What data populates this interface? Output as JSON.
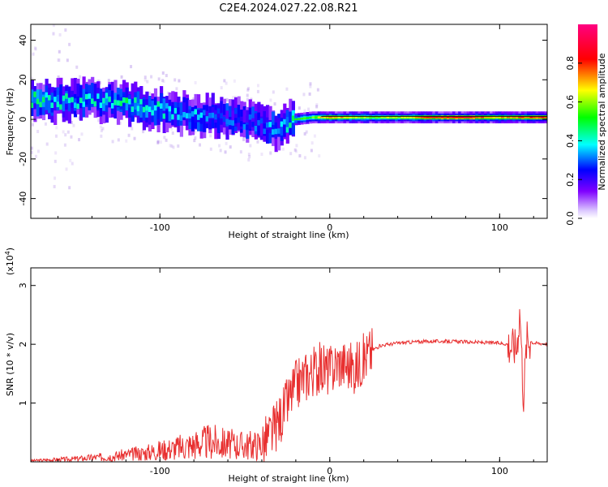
{
  "title": "C2E4.2024.027.22.08.R21",
  "chart_data": [
    {
      "type": "heatmap",
      "title": "C2E4.2024.027.22.08.R21",
      "xlabel": "Height of straight line (km)",
      "ylabel": "Frequency (Hz)",
      "xlim": [
        -176,
        128
      ],
      "ylim": [
        -50,
        48
      ],
      "x_ticks": [
        -100,
        0,
        100
      ],
      "y_ticks": [
        40,
        20,
        0,
        -20,
        -40
      ],
      "x_tick_labels": [
        "-100",
        "0",
        "100"
      ],
      "y_tick_labels": [
        "40",
        "20",
        "0",
        "-20",
        "-40"
      ],
      "colorbar": {
        "label": "Normalized spectral amplitude",
        "range": [
          0.0,
          1.0
        ],
        "ticks": [
          0.0,
          0.2,
          0.4,
          0.6,
          0.8
        ],
        "tick_labels": [
          "0.0",
          "0.2",
          "0.4",
          "0.6",
          "0.8"
        ],
        "colors": [
          "#ffffff",
          "#7f00ff",
          "#0000ff",
          "#00ffff",
          "#00ff00",
          "#ffff00",
          "#ff0000",
          "#ff0080"
        ]
      },
      "ridge": {
        "x": [
          -176,
          -160,
          -140,
          -120,
          -100,
          -80,
          -60,
          -40,
          -30,
          -20,
          -10,
          0,
          20,
          40,
          60,
          80,
          100,
          110,
          128
        ],
        "frequency": [
          10,
          9,
          10,
          8,
          5,
          2,
          1,
          -3,
          -5,
          0,
          1,
          1,
          1,
          1,
          1,
          1,
          1,
          1,
          1
        ],
        "amplitude": [
          0.45,
          0.4,
          0.4,
          0.45,
          0.4,
          0.35,
          0.3,
          0.3,
          0.35,
          0.5,
          0.55,
          0.75,
          0.6,
          0.62,
          0.8,
          0.85,
          0.7,
          0.75,
          0.8
        ]
      }
    },
    {
      "type": "line",
      "xlabel": "Height of straight line (km)",
      "ylabel": "SNR (10 * v/v)",
      "y_multiplier": "(x10",
      "y_multiplier_exp": "4",
      "y_multiplier_close": ")",
      "xlim": [
        -176,
        128
      ],
      "ylim": [
        0,
        3.3
      ],
      "x_ticks": [
        -100,
        0,
        100
      ],
      "y_ticks": [
        1,
        2,
        3
      ],
      "x_tick_labels": [
        "-100",
        "0",
        "100"
      ],
      "y_tick_labels": [
        "1",
        "2",
        "3"
      ],
      "color": "#e83030",
      "series": [
        {
          "x": [
            -176,
            -160,
            -150,
            -140,
            -130,
            -120,
            -110,
            -100,
            -90,
            -80,
            -70,
            -60,
            -50,
            -40,
            -35,
            -30,
            -25,
            -20,
            -15,
            -10,
            -5,
            0,
            5,
            10,
            15,
            20,
            25,
            30,
            40,
            50,
            60,
            70,
            80,
            90,
            100,
            105,
            110,
            112,
            114,
            116,
            120,
            128
          ],
          "y": [
            0.02,
            0.04,
            0.05,
            0.07,
            0.09,
            0.12,
            0.15,
            0.2,
            0.24,
            0.3,
            0.35,
            0.3,
            0.28,
            0.3,
            0.45,
            0.7,
            1.0,
            1.3,
            1.45,
            1.55,
            1.6,
            1.55,
            1.7,
            1.65,
            1.6,
            1.75,
            1.9,
            1.98,
            2.02,
            2.04,
            2.05,
            2.05,
            2.04,
            2.03,
            2.02,
            2.0,
            1.95,
            2.6,
            1.1,
            2.1,
            2.02,
            2.01
          ]
        }
      ]
    }
  ]
}
